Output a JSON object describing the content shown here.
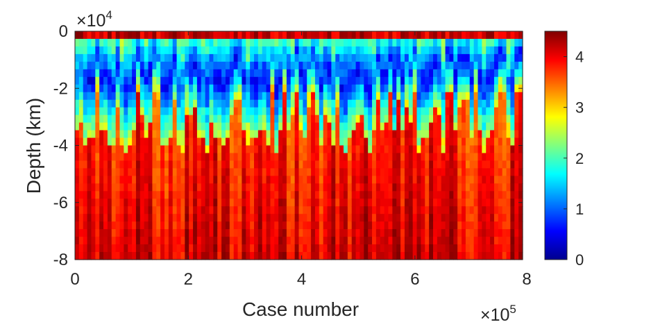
{
  "chart_data": {
    "type": "heatmap",
    "title": "",
    "xlabel": "Case number",
    "ylabel": "Depth (km)",
    "x_multiplier": "×10",
    "x_exponent": "5",
    "y_multiplier": "×10",
    "y_exponent": "4",
    "xlim": [
      0,
      790000
    ],
    "ylim": [
      -80000,
      0
    ],
    "x_ticks": [
      0,
      200000,
      400000,
      600000,
      800000
    ],
    "x_tick_labels": [
      "0",
      "2",
      "4",
      "6",
      "8"
    ],
    "y_ticks": [
      0,
      -20000,
      -40000,
      -60000,
      -80000
    ],
    "y_tick_labels": [
      "0",
      "-2",
      "-4",
      "-6",
      "-8"
    ],
    "colorbar": {
      "colormap": "jet",
      "clim": [
        0,
        4.5
      ],
      "ticks": [
        0,
        1,
        2,
        3,
        4
      ],
      "tick_labels": [
        "0",
        "1",
        "2",
        "3",
        "4"
      ]
    },
    "grid": false,
    "n_columns": 110,
    "n_depth_layers": 30,
    "description_of_values": "Values mostly 3.5-4.5 at depth below -40000; shallow layers (0 to -30000) vary widely between 0.2 and 4.5 across cases"
  }
}
